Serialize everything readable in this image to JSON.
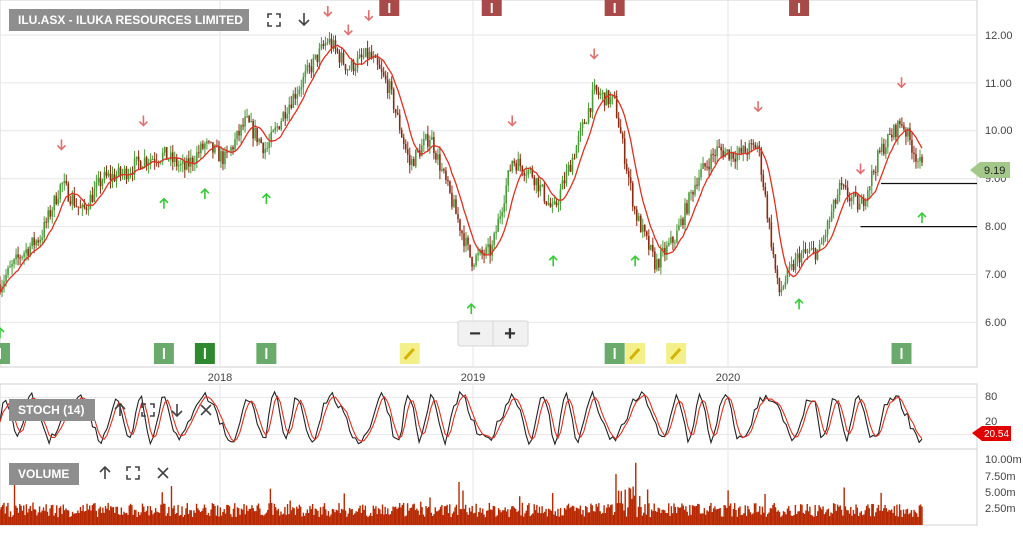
{
  "main_panel": {
    "title": "ILU.ASX - ILUKA RESOURCES LIMITED",
    "y_ticks": [
      "12.00",
      "11.00",
      "10.00",
      "9.00",
      "8.00",
      "7.00",
      "6.00"
    ],
    "price_tag": "9.19",
    "zoom_out_label": "−",
    "zoom_in_label": "+"
  },
  "x_axis": {
    "labels": [
      "2018",
      "2019",
      "2020"
    ]
  },
  "stoch_panel": {
    "title": "STOCH (14)",
    "y_ticks": [
      "80",
      "20"
    ],
    "value_tag": "20.54"
  },
  "volume_panel": {
    "title": "VOLUME",
    "y_ticks": [
      "10.00m",
      "7.50m",
      "5.00m",
      "2.50m"
    ]
  },
  "colors": {
    "candle_up": "#4a9a3a",
    "candle_down": "#8a2a10",
    "moving_average": "#e03020",
    "stoch_k": "#222222",
    "stoch_d": "#e03020",
    "volume_bar": "#b82800",
    "sell_arrow": "#e07070",
    "buy_arrow": "#33cc33",
    "grid": "#e6e6e6",
    "price_tag": "#a3c88a",
    "stoch_tag": "#e00000"
  },
  "chart_data": [
    {
      "type": "candlestick",
      "title": "ILU.ASX - ILUKA RESOURCES LIMITED",
      "x_range": [
        "2017-01",
        "2020-10"
      ],
      "ylim": [
        5.5,
        12.5
      ],
      "grid": true,
      "last_price": 9.19,
      "price_path": [
        [
          "2017-01",
          6.8
        ],
        [
          "2017-02",
          7.4
        ],
        [
          "2017-03",
          7.8
        ],
        [
          "2017-04",
          8.9
        ],
        [
          "2017-05",
          8.3
        ],
        [
          "2017-06",
          9.0
        ],
        [
          "2017-07",
          9.1
        ],
        [
          "2017-08",
          9.4
        ],
        [
          "2017-09",
          9.5
        ],
        [
          "2017-10",
          9.2
        ],
        [
          "2017-11",
          9.7
        ],
        [
          "2017-12",
          9.4
        ],
        [
          "2018-01",
          10.2
        ],
        [
          "2018-02",
          9.6
        ],
        [
          "2018-03",
          10.5
        ],
        [
          "2018-04",
          11.2
        ],
        [
          "2018-05",
          11.9
        ],
        [
          "2018-06",
          11.3
        ],
        [
          "2018-07",
          11.6
        ],
        [
          "2018-08",
          10.9
        ],
        [
          "2018-09",
          9.3
        ],
        [
          "2018-10",
          9.9
        ],
        [
          "2018-11",
          8.6
        ],
        [
          "2018-12",
          7.3
        ],
        [
          "2019-01",
          7.5
        ],
        [
          "2019-02",
          9.4
        ],
        [
          "2019-03",
          9.1
        ],
        [
          "2019-04",
          8.3
        ],
        [
          "2019-05",
          9.5
        ],
        [
          "2019-06",
          10.8
        ],
        [
          "2019-07",
          10.6
        ],
        [
          "2019-08",
          8.3
        ],
        [
          "2019-09",
          7.2
        ],
        [
          "2019-10",
          7.8
        ],
        [
          "2019-11",
          9.0
        ],
        [
          "2019-12",
          9.6
        ],
        [
          "2020-01",
          9.5
        ],
        [
          "2020-02",
          9.7
        ],
        [
          "2020-03",
          6.6
        ],
        [
          "2020-04",
          7.4
        ],
        [
          "2020-05",
          7.5
        ],
        [
          "2020-06",
          8.8
        ],
        [
          "2020-07",
          8.4
        ],
        [
          "2020-08",
          9.6
        ],
        [
          "2020-09",
          10.2
        ],
        [
          "2020-10",
          9.2
        ]
      ],
      "levels": [
        {
          "value": 8.9,
          "from": "2020-08"
        },
        {
          "value": 8.0,
          "from": "2020-07"
        }
      ],
      "sell_signals": [
        "2017-04",
        "2017-08",
        "2018-05",
        "2018-06",
        "2018-07",
        "2019-02",
        "2019-06",
        "2020-02",
        "2020-07",
        "2020-09"
      ],
      "buy_signals": [
        "2017-01",
        "2017-09",
        "2017-11",
        "2018-02",
        "2018-12",
        "2019-04",
        "2019-08",
        "2020-04",
        "2020-10"
      ],
      "events": [
        {
          "type": "I",
          "date": "2017-01",
          "color": "#6aaa6a"
        },
        {
          "type": "I",
          "date": "2017-09",
          "color": "#6aaa6a"
        },
        {
          "type": "I",
          "date": "2017-11",
          "color": "#2f8a2f"
        },
        {
          "type": "I",
          "date": "2018-02",
          "color": "#6aaa6a"
        },
        {
          "type": "edit",
          "date": "2018-09",
          "color": "#f3f08a"
        },
        {
          "type": "I",
          "date": "2019-07",
          "color": "#6aaa6a"
        },
        {
          "type": "edit",
          "date": "2019-08",
          "color": "#f3f08a"
        },
        {
          "type": "edit",
          "date": "2019-10",
          "color": "#f3f08a"
        },
        {
          "type": "I",
          "date": "2020-09",
          "color": "#6aaa6a"
        }
      ],
      "top_events": [
        {
          "type": "I",
          "date": "2018-08",
          "color": "#a84a4a"
        },
        {
          "type": "I",
          "date": "2019-01",
          "color": "#a84a4a"
        },
        {
          "type": "I",
          "date": "2019-07",
          "color": "#a84a4a"
        },
        {
          "type": "I",
          "date": "2020-04",
          "color": "#a84a4a"
        }
      ]
    },
    {
      "type": "line",
      "title": "STOCH (14)",
      "ylim": [
        0,
        100
      ],
      "y_ticks": [
        80,
        20
      ],
      "series": [
        {
          "values": "oscillating"
        },
        {
          "values": "oscillating"
        }
      ],
      "last_value": 20.54
    },
    {
      "type": "bar",
      "title": "VOLUME",
      "unit": "m",
      "ylim": [
        0,
        11
      ],
      "y_ticks": [
        10,
        7.5,
        5,
        2.5
      ]
    }
  ]
}
